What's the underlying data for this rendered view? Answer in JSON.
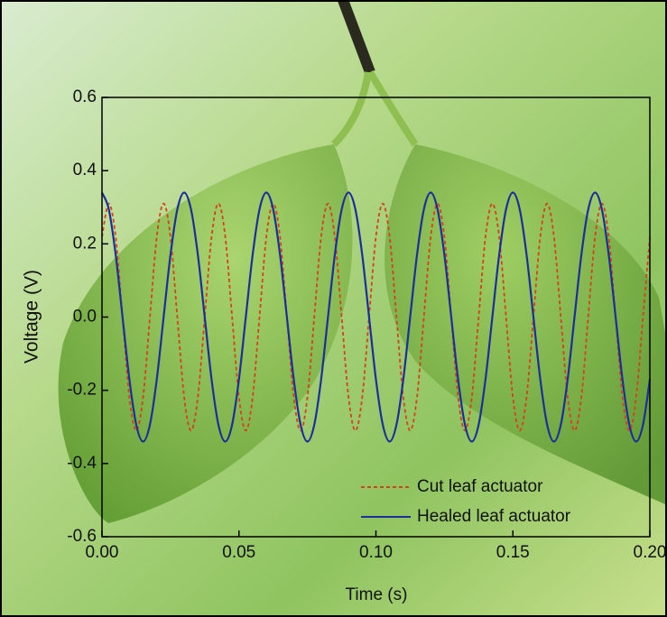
{
  "chart_data": {
    "type": "line",
    "xlabel": "Time (s)",
    "ylabel": "Voltage (V)",
    "x": [
      0,
      0.0025,
      0.005,
      0.0075,
      0.01,
      0.0125,
      0.015,
      0.0175,
      0.02,
      0.0225,
      0.025,
      0.0275,
      0.03,
      0.0325,
      0.035,
      0.0375,
      0.04,
      0.0425,
      0.045,
      0.0475,
      0.05,
      0.0525,
      0.055,
      0.0575,
      0.06,
      0.0625,
      0.065,
      0.0675,
      0.07,
      0.0725,
      0.075,
      0.0775,
      0.08,
      0.0825,
      0.085,
      0.0875,
      0.09,
      0.0925,
      0.095,
      0.0975,
      0.1,
      0.1025,
      0.105,
      0.1075,
      0.11,
      0.1125,
      0.115,
      0.1175,
      0.12,
      0.1225,
      0.125,
      0.1275,
      0.13,
      0.1325,
      0.135,
      0.1375,
      0.14,
      0.1425,
      0.145,
      0.1475,
      0.15,
      0.1525,
      0.155,
      0.1575,
      0.16,
      0.1625,
      0.165,
      0.1675,
      0.17,
      0.1725,
      0.175,
      0.1775,
      0.18,
      0.1825,
      0.185,
      0.1875,
      0.19,
      0.1925,
      0.195,
      0.1975,
      0.2
    ],
    "series": [
      {
        "name": "Cut leaf actuator",
        "color": "#d8401a",
        "dashed": true,
        "values": [
          0.219,
          0.31,
          0.219,
          0,
          -0.219,
          -0.31,
          -0.219,
          0,
          0.219,
          0.31,
          0.219,
          0,
          -0.219,
          -0.31,
          -0.219,
          0,
          0.219,
          0.31,
          0.219,
          0,
          -0.219,
          -0.31,
          -0.219,
          0,
          0.219,
          0.31,
          0.219,
          0,
          -0.219,
          -0.31,
          -0.219,
          0,
          0.219,
          0.31,
          0.219,
          0,
          -0.219,
          -0.31,
          -0.219,
          0,
          0.219,
          0.31,
          0.219,
          0,
          -0.219,
          -0.31,
          -0.219,
          0,
          0.219,
          0.31,
          0.219,
          0,
          -0.219,
          -0.31,
          -0.219,
          0,
          0.219,
          0.31,
          0.219,
          0,
          -0.219,
          -0.31,
          -0.219,
          0,
          0.219,
          0.31,
          0.219,
          0,
          -0.219,
          -0.31,
          -0.219,
          0,
          0.219,
          0.31,
          0.219,
          0,
          -0.219,
          -0.31,
          -0.219,
          0,
          0.219
        ]
      },
      {
        "name": "Healed leaf actuator",
        "color": "#1c2d9c",
        "dashed": false,
        "values": [
          0.34,
          0.294,
          0.17,
          0,
          -0.17,
          -0.294,
          -0.34,
          -0.294,
          -0.17,
          0,
          0.17,
          0.294,
          0.34,
          0.294,
          0.17,
          0,
          -0.17,
          -0.294,
          -0.34,
          -0.294,
          -0.17,
          0,
          0.17,
          0.294,
          0.34,
          0.294,
          0.17,
          0,
          -0.17,
          -0.294,
          -0.34,
          -0.294,
          -0.17,
          0,
          0.17,
          0.294,
          0.34,
          0.294,
          0.17,
          0,
          -0.17,
          -0.294,
          -0.34,
          -0.294,
          -0.17,
          0,
          0.17,
          0.294,
          0.34,
          0.294,
          0.17,
          0,
          -0.17,
          -0.294,
          -0.34,
          -0.294,
          -0.17,
          0,
          0.17,
          0.294,
          0.34,
          0.294,
          0.17,
          0,
          -0.17,
          -0.294,
          -0.34,
          -0.294,
          -0.17,
          0,
          0.17,
          0.294,
          0.34,
          0.294,
          0.17,
          0,
          -0.17,
          -0.294,
          -0.34,
          -0.294,
          -0.17
        ]
      }
    ],
    "xlim": [
      0,
      0.2
    ],
    "xticks": [
      {
        "value": 0,
        "label": "0.00"
      },
      0.05,
      {
        "value": 0.1,
        "label": "0.10"
      },
      0.15,
      {
        "value": 0.2,
        "label": "0.20"
      }
    ],
    "ylim": [
      -0.6,
      0.6
    ],
    "yticks": [
      -0.6,
      -0.4,
      -0.2,
      {
        "value": 0,
        "label": "0.0"
      },
      0.2,
      0.4,
      0.6
    ],
    "legend": "lower-right"
  }
}
